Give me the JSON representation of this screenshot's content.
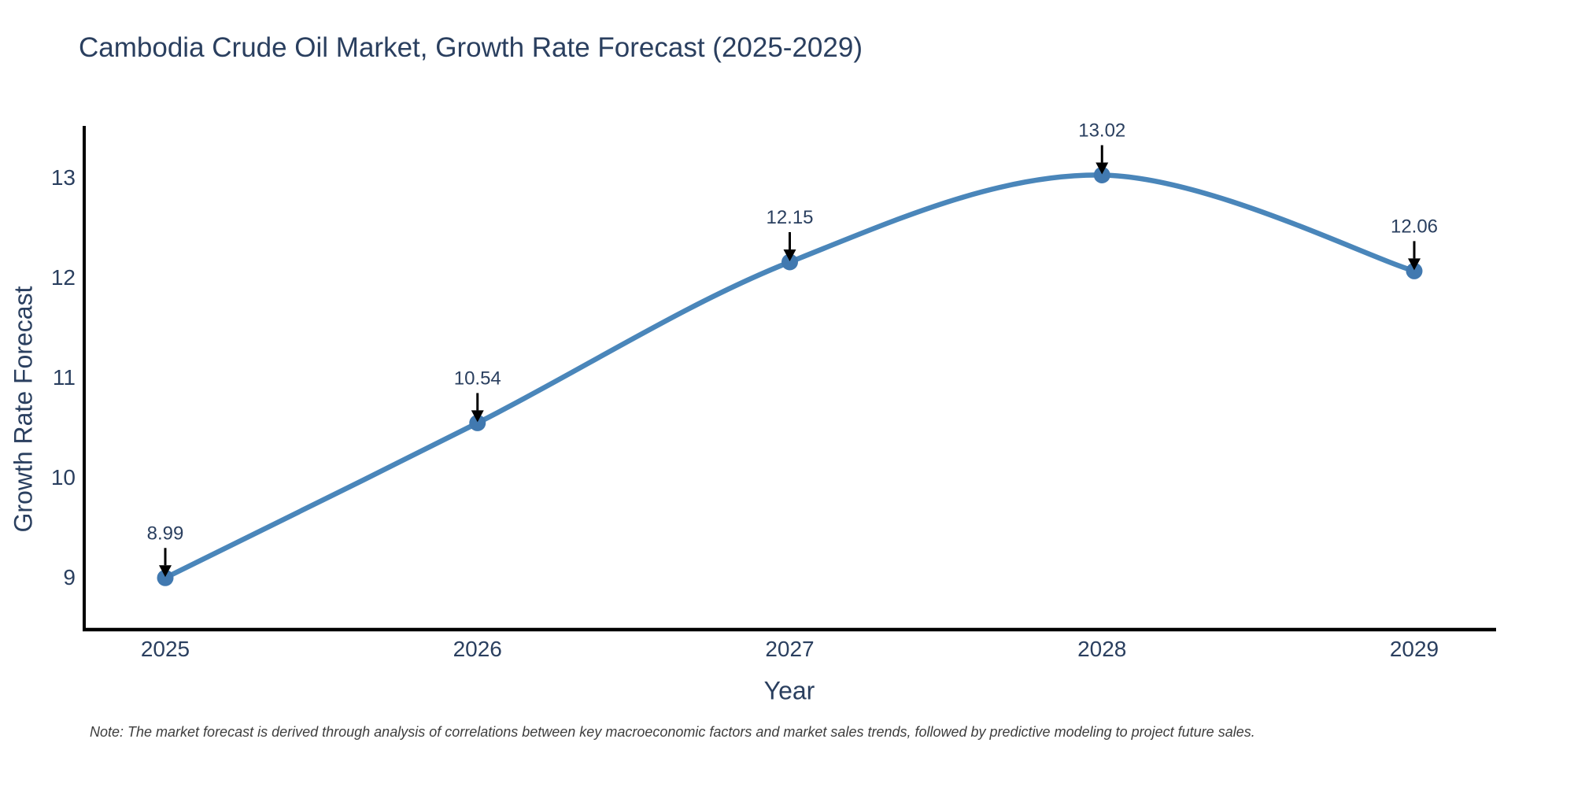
{
  "chart_data": {
    "type": "line",
    "title": "Cambodia Crude Oil Market, Growth Rate Forecast (2025-2029)",
    "xlabel": "Year",
    "ylabel": "Growth Rate Forecast",
    "categories": [
      "2025",
      "2026",
      "2027",
      "2028",
      "2029"
    ],
    "values": [
      8.99,
      10.54,
      12.15,
      13.02,
      12.06
    ],
    "point_labels": [
      "8.99",
      "10.54",
      "12.15",
      "13.02",
      "12.06"
    ],
    "y_ticks": [
      9,
      10,
      11,
      12,
      13
    ],
    "ylim": [
      8.47,
      13.52
    ],
    "line_shape": "spline",
    "grid": false,
    "legend": "none",
    "annotations": "value labels with black arrows pointing down to each marker",
    "colors": {
      "line": "#4A86BA",
      "marker": "#4179B0",
      "axis": "#000000",
      "text": "#2A3F5F",
      "arrow": "#000000",
      "note_text": "#3D3D3D",
      "background": "#FFFFFF"
    }
  },
  "note": {
    "text": "Note: The market forecast is derived through analysis of correlations between key macroeconomic factors and market sales trends, followed by predictive modeling to project future sales."
  }
}
